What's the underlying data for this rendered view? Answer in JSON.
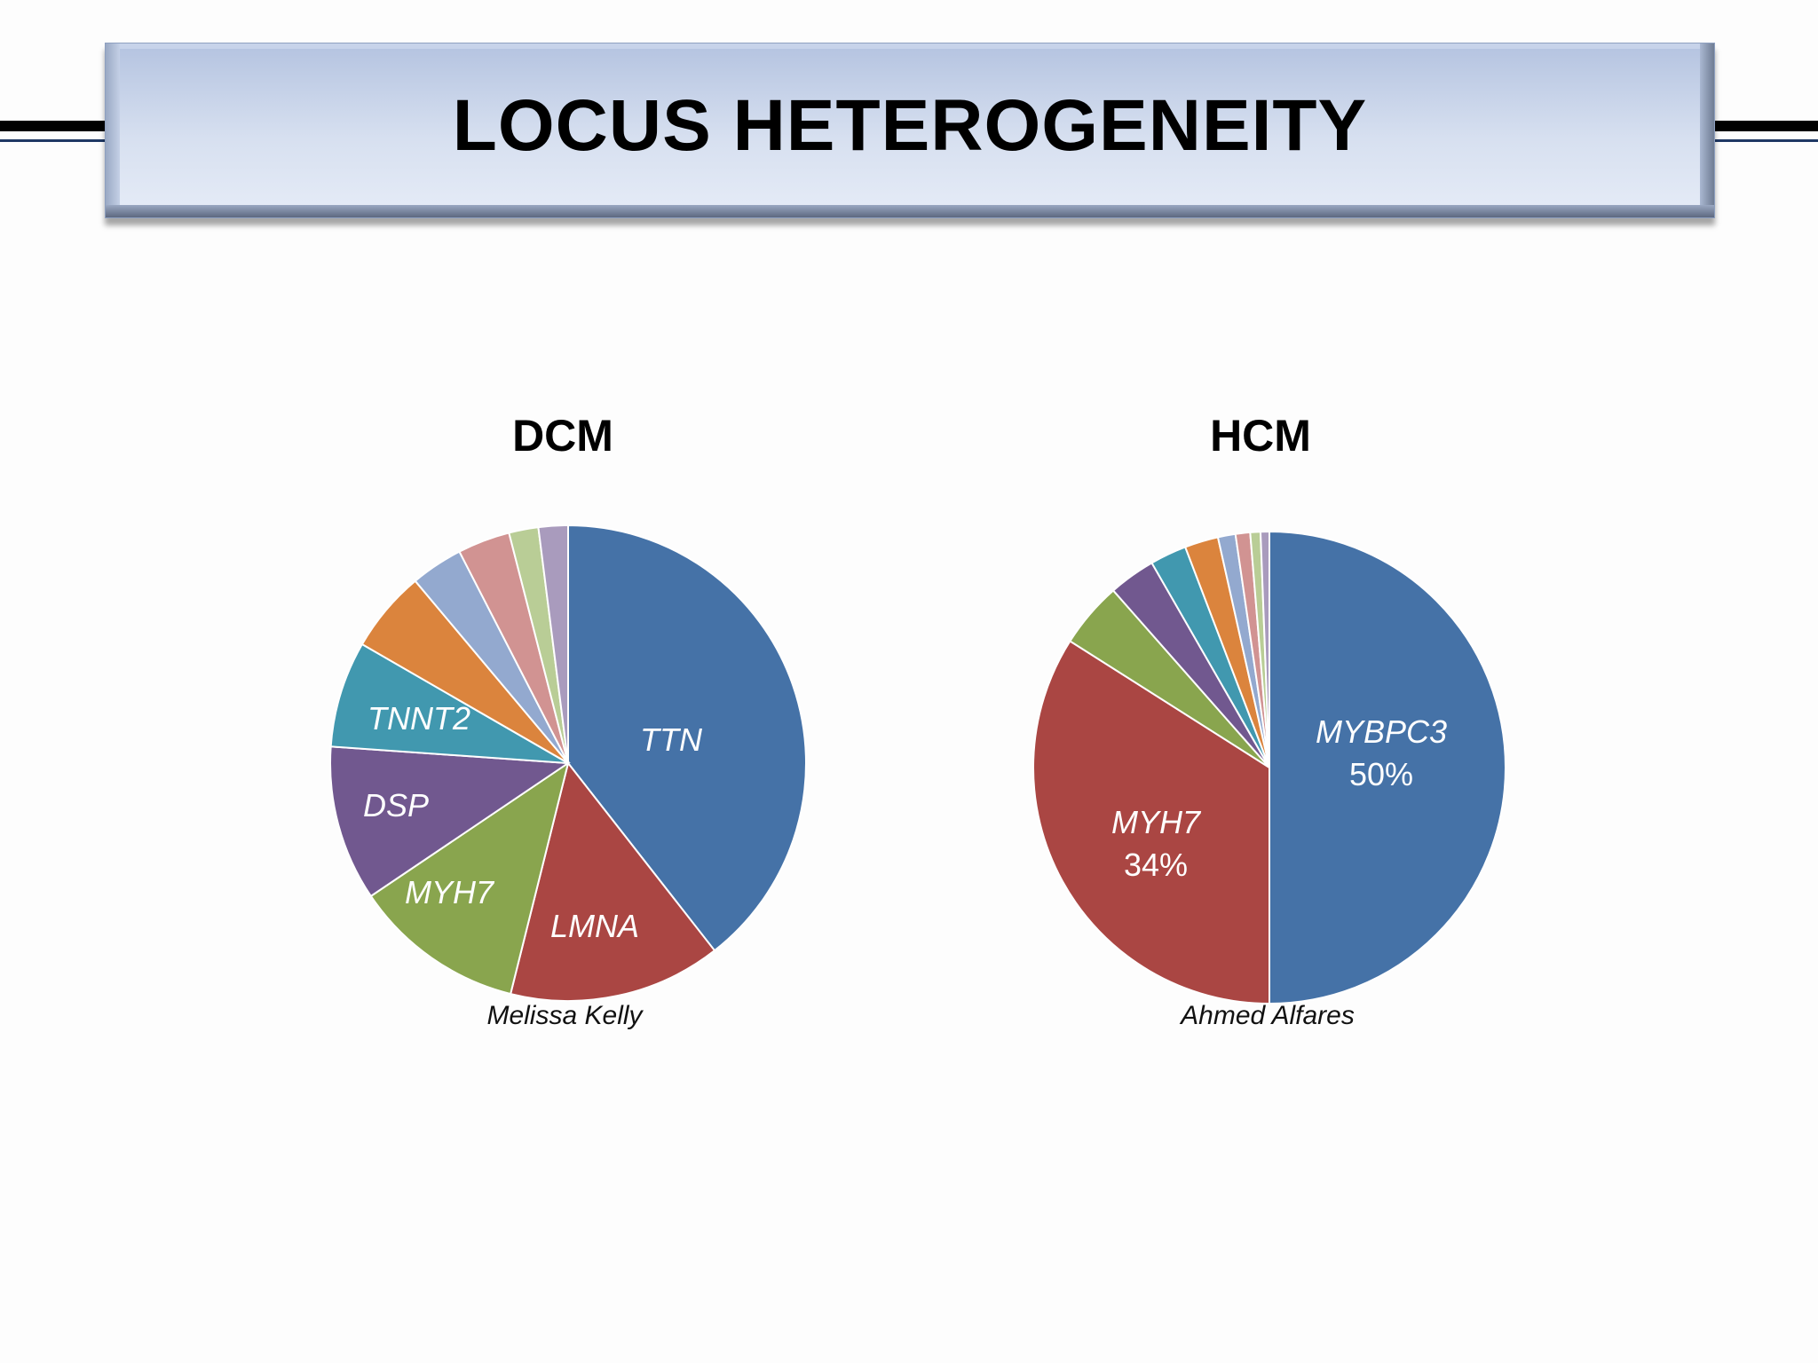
{
  "slide": {
    "title": "LOCUS HETEROGENEITY"
  },
  "charts": {
    "dcm": {
      "title": "DCM",
      "source": "Melissa Kelly"
    },
    "hcm": {
      "title": "HCM",
      "source": "Ahmed Alfares"
    }
  },
  "chart_data": [
    {
      "type": "pie",
      "title": "DCM",
      "categories": [
        "TTN",
        "LMNA",
        "MYH7",
        "DSP",
        "TNNT2",
        "",
        "",
        "",
        "",
        ""
      ],
      "values": [
        35.5,
        13,
        10.5,
        9.5,
        6.5,
        5,
        3.2,
        3.2,
        1.8,
        1.8
      ],
      "slice_labels": [
        "TTN",
        "LMNA",
        "MYH7",
        "DSP",
        "TNNT2",
        "",
        "",
        "",
        "",
        ""
      ],
      "colors": [
        "#4572a7",
        "#aa4643",
        "#89a54e",
        "#71588f",
        "#4198af",
        "#db843d",
        "#93a9cf",
        "#d19392",
        "#b9cd96",
        "#a99bbd"
      ]
    },
    {
      "type": "pie",
      "title": "HCM",
      "categories": [
        "MYBPC3",
        "MYH7",
        "",
        "",
        "",
        "",
        "",
        "",
        "",
        ""
      ],
      "values": [
        50,
        34,
        4.5,
        3.2,
        2.5,
        2.3,
        1.2,
        1.0,
        0.7,
        0.6
      ],
      "slice_labels": [
        "MYBPC3\n50%",
        "MYH7\n34%",
        "",
        "",
        "",
        "",
        "",
        "",
        "",
        ""
      ],
      "colors": [
        "#4572a7",
        "#aa4643",
        "#89a54e",
        "#71588f",
        "#4198af",
        "#db843d",
        "#93a9cf",
        "#d19392",
        "#b9cd96",
        "#a99bbd"
      ]
    }
  ]
}
